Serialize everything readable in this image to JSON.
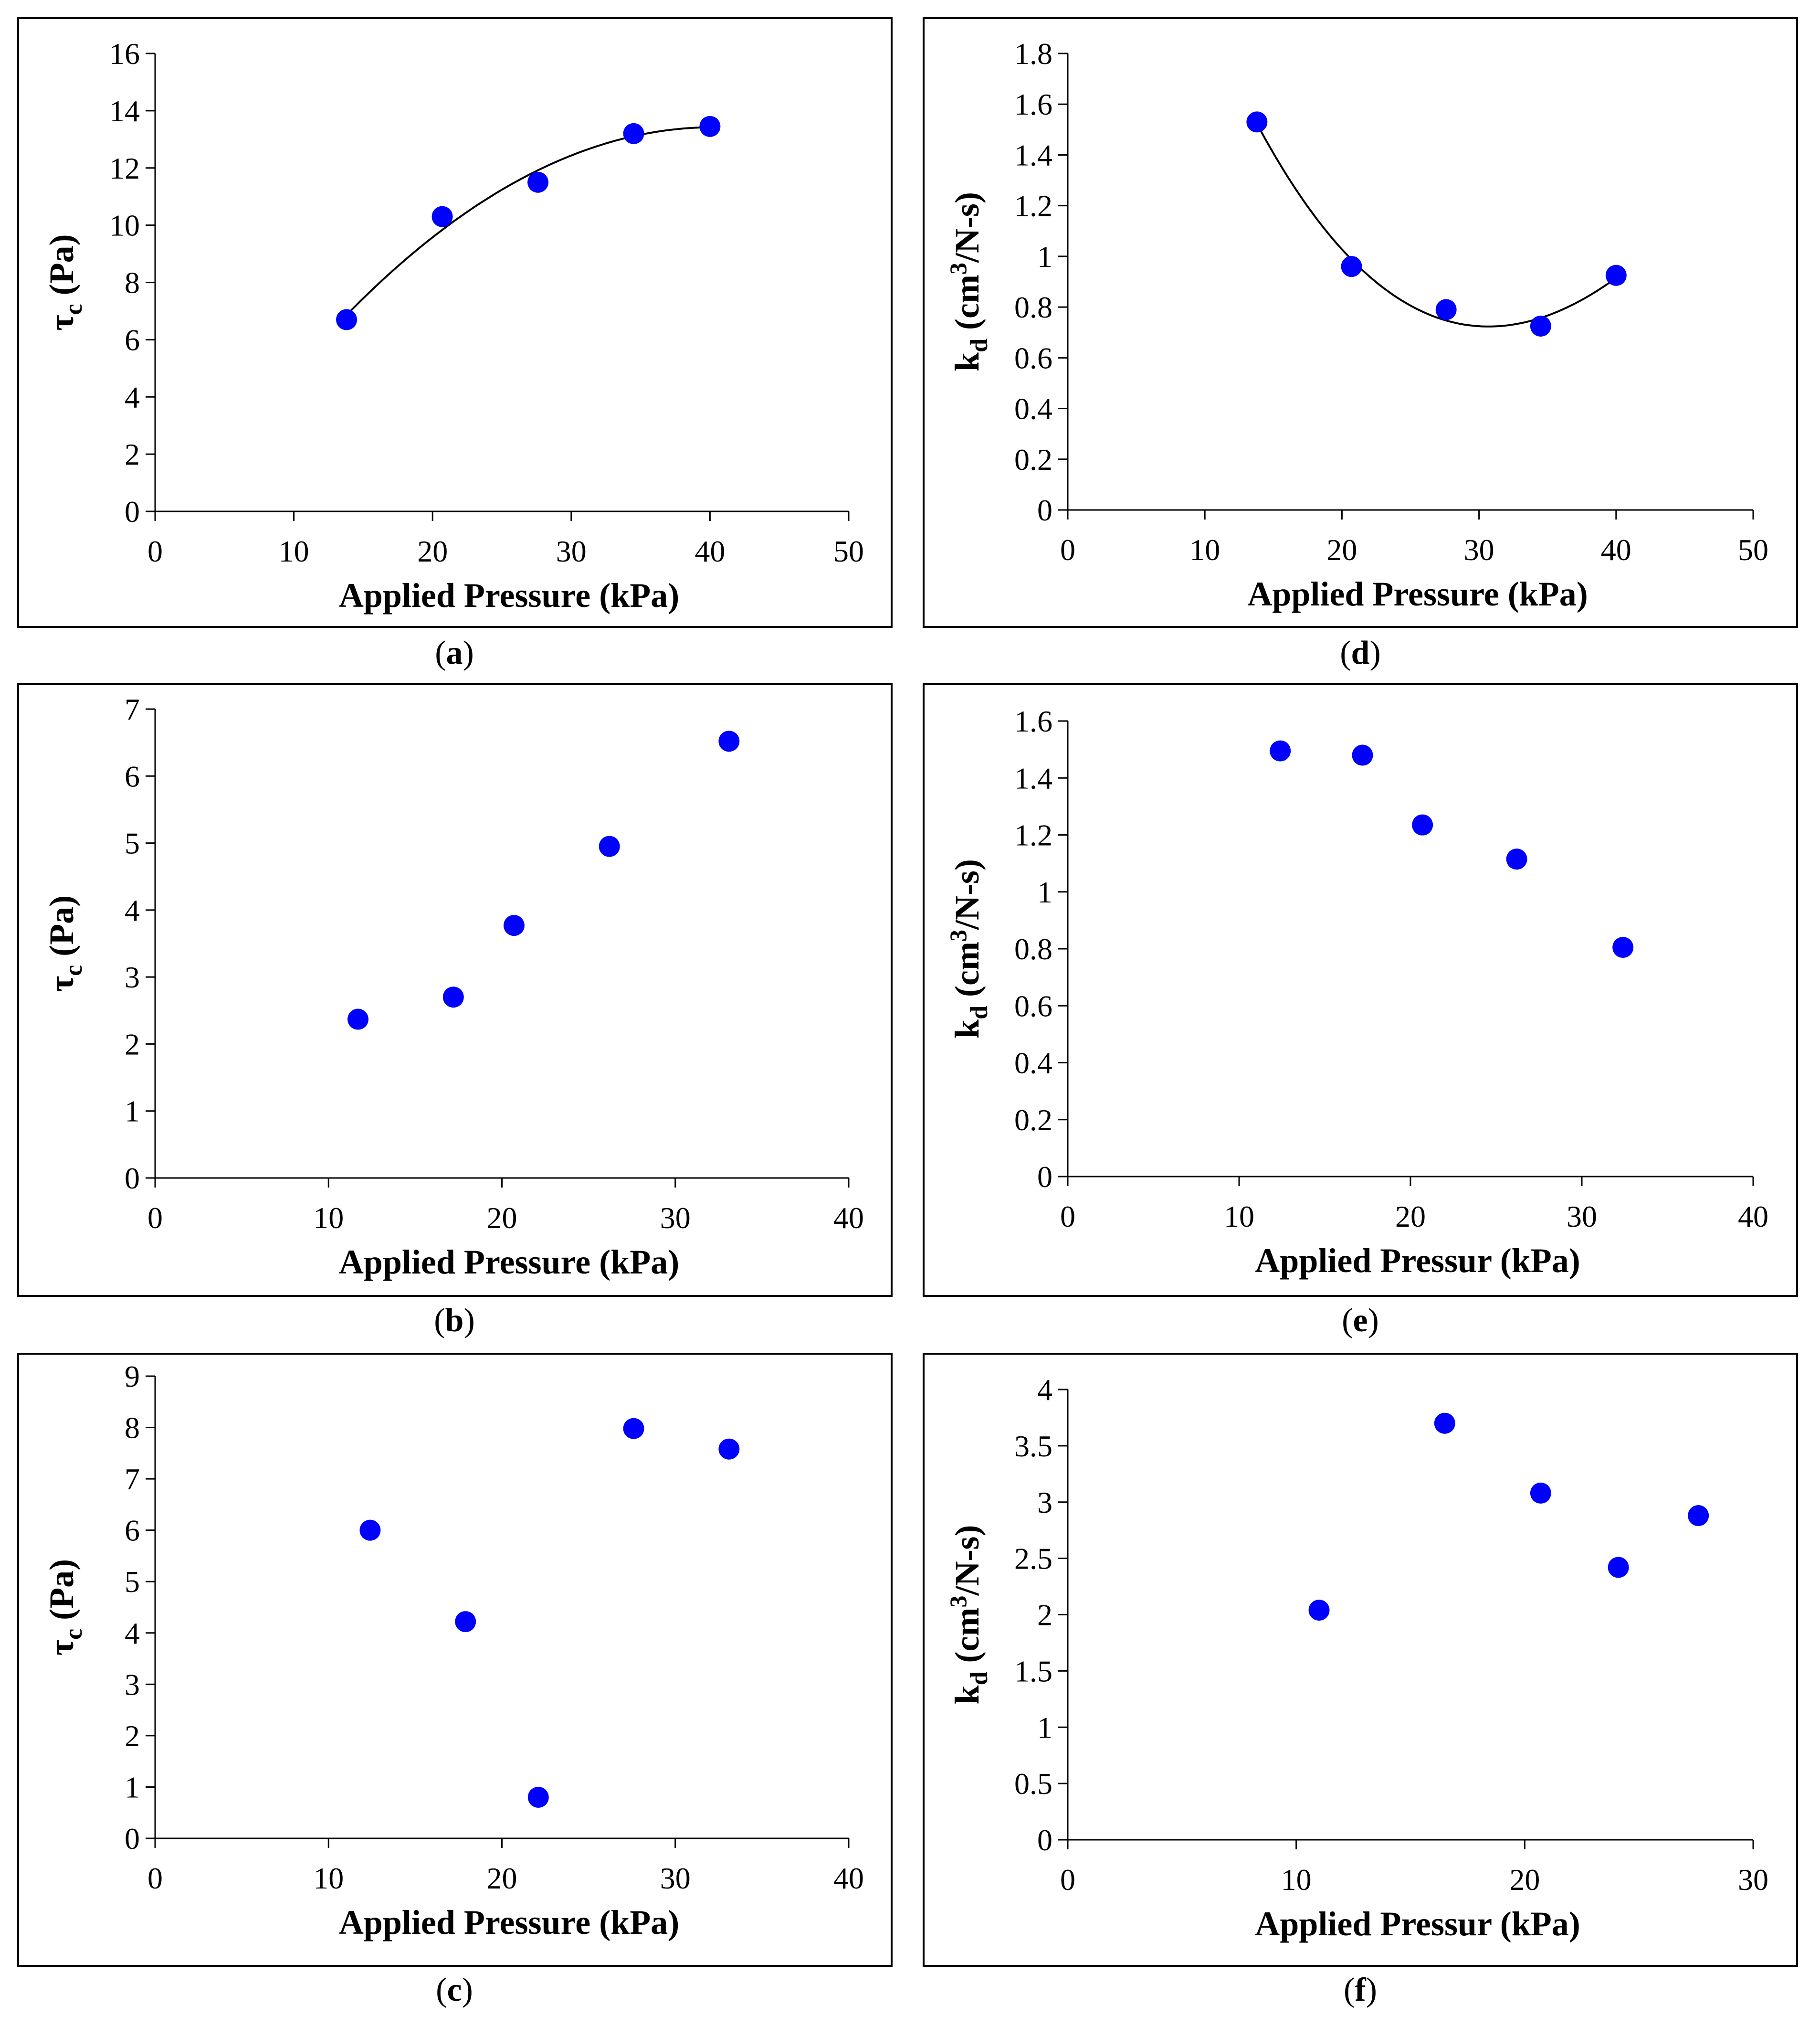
{
  "figure": {
    "marker_color": "#0000ff",
    "frame_color": "#000000",
    "fit_color": "#000000"
  },
  "chart_data": [
    {
      "id": "a",
      "caption": "a",
      "type": "scatter",
      "xlabel": "Applied Pressure (kPa)",
      "ylabel": {
        "main": "τ",
        "sub": "c",
        "rest": " (Pa)"
      },
      "xlim": [
        0,
        50
      ],
      "xticks": [
        0,
        10,
        20,
        30,
        40,
        50
      ],
      "ylim": [
        0,
        16
      ],
      "yticks": [
        0,
        2,
        4,
        6,
        8,
        10,
        12,
        14,
        16
      ],
      "points": [
        [
          13.8,
          6.7
        ],
        [
          20.7,
          10.3
        ],
        [
          27.6,
          11.5
        ],
        [
          34.5,
          13.2
        ],
        [
          40,
          13.45
        ]
      ],
      "trendline": {
        "type": "polynomial",
        "order": 2,
        "from": 13.8,
        "to": 40
      }
    },
    {
      "id": "d",
      "caption": "d",
      "type": "scatter",
      "xlabel": "Applied Pressure (kPa)",
      "ylabel": {
        "main": "k",
        "sub": "d",
        "rest": " (cm",
        "sup": "3",
        "tail": "/N-s)"
      },
      "xlim": [
        0,
        50
      ],
      "xticks": [
        0,
        10,
        20,
        30,
        40,
        50
      ],
      "ylim": [
        0,
        1.8
      ],
      "yticks": [
        0,
        0.2,
        0.4,
        0.6,
        0.8,
        1,
        1.2,
        1.4,
        1.6,
        1.8
      ],
      "ytick_labels": [
        "0",
        "0.2",
        "0.4",
        "0.6",
        "0.8",
        "1",
        "1.2",
        "1.4",
        "1.6",
        "1.8"
      ],
      "points": [
        [
          13.8,
          1.53
        ],
        [
          20.7,
          0.96
        ],
        [
          27.6,
          0.79
        ],
        [
          34.5,
          0.725
        ],
        [
          40,
          0.925
        ]
      ],
      "trendline": {
        "type": "polynomial",
        "order": 3,
        "from": 13.8,
        "to": 40
      }
    },
    {
      "id": "b",
      "caption": "b",
      "type": "scatter",
      "xlabel": "Applied Pressure (kPa)",
      "ylabel": {
        "main": "τ",
        "sub": "c",
        "rest": " (Pa)"
      },
      "xlim": [
        0,
        40
      ],
      "xticks": [
        0,
        10,
        20,
        30,
        40
      ],
      "ylim": [
        0,
        7
      ],
      "yticks": [
        0,
        1,
        2,
        3,
        4,
        5,
        6,
        7
      ],
      "points": [
        [
          11.7,
          2.37
        ],
        [
          17.2,
          2.7
        ],
        [
          20.7,
          3.77
        ],
        [
          26.2,
          4.95
        ],
        [
          33.1,
          6.52
        ]
      ]
    },
    {
      "id": "e",
      "caption": "e",
      "type": "scatter",
      "xlabel": "Applied Pressur (kPa)",
      "ylabel": {
        "main": "k",
        "sub": "d",
        "rest": " (cm",
        "sup": "3",
        "tail": "/N-s)"
      },
      "xlim": [
        0,
        40
      ],
      "xticks": [
        0,
        10,
        20,
        30,
        40
      ],
      "ylim": [
        0,
        1.6
      ],
      "yticks": [
        0,
        0.2,
        0.4,
        0.6,
        0.8,
        1,
        1.2,
        1.4,
        1.6
      ],
      "ytick_labels": [
        "0",
        "0.2",
        "0.4",
        "0.6",
        "0.8",
        "1",
        "1.2",
        "1.4",
        "1.6"
      ],
      "points": [
        [
          12.4,
          1.495
        ],
        [
          17.2,
          1.48
        ],
        [
          20.7,
          1.235
        ],
        [
          26.2,
          1.115
        ],
        [
          32.4,
          0.805
        ]
      ]
    },
    {
      "id": "c",
      "caption": "c",
      "type": "scatter",
      "xlabel": "Applied Pressure (kPa)",
      "ylabel": {
        "main": "τ",
        "sub": "c",
        "rest": " (Pa)"
      },
      "xlim": [
        0,
        40
      ],
      "xticks": [
        0,
        10,
        20,
        30,
        40
      ],
      "ylim": [
        0,
        9
      ],
      "yticks": [
        0,
        1,
        2,
        3,
        4,
        5,
        6,
        7,
        8,
        9
      ],
      "points": [
        [
          12.4,
          6.0
        ],
        [
          17.9,
          4.22
        ],
        [
          22.1,
          0.8
        ],
        [
          27.6,
          7.98
        ],
        [
          33.1,
          7.58
        ]
      ]
    },
    {
      "id": "f",
      "caption": "f",
      "type": "scatter",
      "xlabel": "Applied Pressur (kPa)",
      "ylabel": {
        "main": "k",
        "sub": "d",
        "rest": " (cm",
        "sup": "3",
        "tail": "/N-s)"
      },
      "xlim": [
        0,
        30
      ],
      "xticks": [
        0,
        10,
        20,
        30
      ],
      "ylim": [
        0,
        4
      ],
      "yticks": [
        0,
        0.5,
        1,
        1.5,
        2,
        2.5,
        3,
        3.5,
        4
      ],
      "ytick_labels": [
        "0",
        "0.5",
        "1",
        "1.5",
        "2",
        "2.5",
        "3",
        "3.5",
        "4"
      ],
      "points": [
        [
          11,
          2.04
        ],
        [
          16.5,
          3.7
        ],
        [
          20.7,
          3.08
        ],
        [
          24.1,
          2.42
        ],
        [
          27.6,
          2.88
        ]
      ]
    }
  ]
}
